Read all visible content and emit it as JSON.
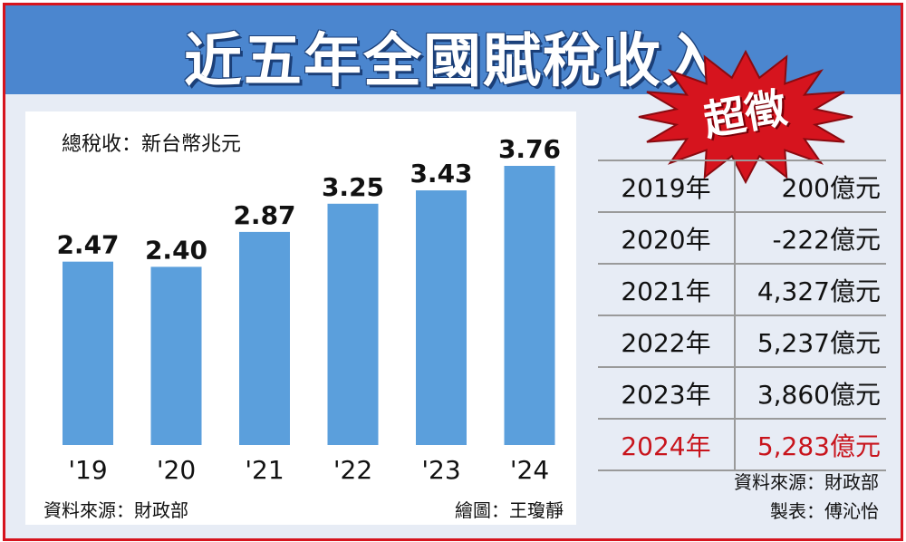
{
  "header": {
    "title": "近五年全國賦稅收入"
  },
  "badge": {
    "text": "超徵"
  },
  "chart": {
    "unit_label": "總稅收：新台幣兆元",
    "source": "資料來源：財政部",
    "credit": "繪圖：王瓊靜"
  },
  "colors": {
    "bar": "#5b9fdc",
    "accent": "#d6141e",
    "header": "#4b86cf",
    "highlight_text": "#c8141c"
  },
  "chart_data": {
    "type": "bar",
    "categories": [
      "'19",
      "'20",
      "'21",
      "'22",
      "'23",
      "'24"
    ],
    "values": [
      2.47,
      2.4,
      2.87,
      3.25,
      3.43,
      3.76
    ],
    "value_labels": [
      "2.47",
      "2.40",
      "2.87",
      "3.25",
      "3.43",
      "3.76"
    ],
    "ylim": [
      0,
      3.76
    ]
  },
  "table": {
    "rows": [
      {
        "year": "2019年",
        "amount": "200億元"
      },
      {
        "year": "2020年",
        "amount": "-222億元"
      },
      {
        "year": "2021年",
        "amount": "4,327億元"
      },
      {
        "year": "2022年",
        "amount": "5,237億元"
      },
      {
        "year": "2023年",
        "amount": "3,860億元"
      },
      {
        "year": "2024年",
        "amount": "5,283億元"
      }
    ],
    "source": "資料來源：財政部",
    "credit": "製表：傅沁怡"
  }
}
